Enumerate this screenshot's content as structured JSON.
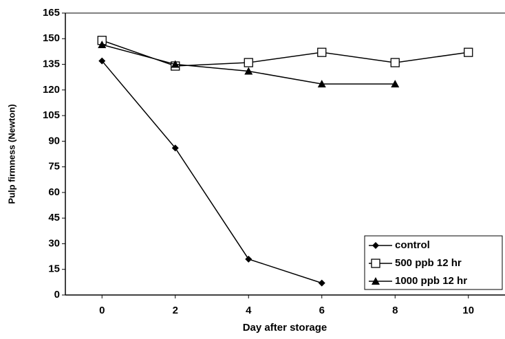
{
  "chart_data": {
    "type": "line",
    "x_label": "Day after storage",
    "y_label": "Pulp firmness (Newton)",
    "x": [
      0,
      2,
      4,
      6,
      8,
      10
    ],
    "series": [
      {
        "name": "control",
        "color": "#000000",
        "marker": "diamond",
        "values": [
          137,
          86,
          21,
          7,
          null,
          null
        ]
      },
      {
        "name": "500 ppb 12 hr",
        "color": "#000000",
        "marker": "square",
        "values": [
          149,
          134,
          136,
          142,
          136,
          142
        ]
      },
      {
        "name": "1000 ppb 12 hr",
        "color": "#000000",
        "marker": "triangle",
        "values": [
          146.5,
          135,
          131,
          123.5,
          123.5,
          null
        ]
      }
    ],
    "xlim": [
      -1,
      11
    ],
    "xticks": [
      0,
      2,
      4,
      6,
      8,
      10
    ],
    "ylim": [
      0,
      165
    ],
    "yticks": [
      0,
      15,
      30,
      45,
      60,
      75,
      90,
      105,
      120,
      135,
      150,
      165
    ],
    "legend": "lower right"
  }
}
